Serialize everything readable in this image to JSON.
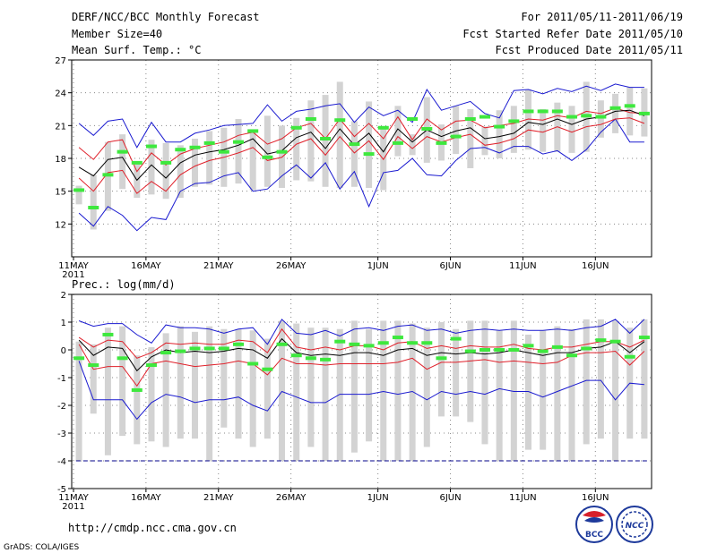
{
  "header": {
    "title": "DERF/NCC/BCC Monthly Forecast",
    "member_size": "Member Size=40",
    "variable": "Mean Surf. Temp.: °C",
    "period": "For 2011/05/11-2011/06/19",
    "refer_date": "Fcst Started Refer Date 2011/05/10",
    "produced_date": "Fcst Produced Date 2011/05/11"
  },
  "footer": {
    "url": "http://cmdp.ncc.cma.gov.cn",
    "credit": "GrADS: COLA/IGES",
    "logo_bcc": "BCC",
    "logo_ncc": "NCC"
  },
  "colors": {
    "box": "#d3d3d3",
    "median": "#3ee83e",
    "mean": "#000000",
    "spread": "#e0202a",
    "envelope": "#1a1ad0",
    "dashed": "#00008b"
  },
  "chart_data": [
    {
      "type": "box",
      "title": "Mean Surf. Temp.: °C",
      "unit": "°C",
      "x_start": "2011-05-11",
      "x_days": 40,
      "ylim": [
        9,
        27
      ],
      "yticks": [
        12,
        15,
        18,
        21,
        24,
        27
      ],
      "xtick_labels": [
        "11MAY",
        "16MAY",
        "21MAY",
        "26MAY",
        "1JUN",
        "6JUN",
        "11JUN",
        "16JUN"
      ],
      "xtick_days": [
        0,
        5,
        10,
        15,
        21,
        26,
        31,
        36
      ],
      "year_label": "2011",
      "series": [
        {
          "name": "max",
          "values": [
            21.2,
            20.1,
            21.4,
            21.6,
            19.0,
            21.3,
            19.5,
            19.5,
            20.3,
            20.6,
            21.0,
            21.1,
            21.2,
            22.9,
            21.4,
            22.3,
            22.5,
            22.8,
            23.0,
            21.3,
            22.7,
            21.9,
            22.4,
            21.3,
            24.3,
            22.4,
            22.8,
            23.2,
            22.1,
            21.7,
            24.2,
            24.3,
            23.9,
            24.4,
            24.1,
            24.6,
            24.2,
            24.8,
            24.5,
            24.5
          ]
        },
        {
          "name": "upper",
          "values": [
            19.0,
            17.9,
            19.5,
            19.7,
            16.8,
            18.5,
            17.4,
            18.4,
            18.9,
            19.2,
            19.5,
            20.1,
            20.4,
            19.3,
            19.8,
            20.8,
            21.2,
            19.8,
            21.6,
            20.0,
            21.2,
            19.8,
            21.8,
            19.7,
            21.6,
            20.6,
            21.4,
            21.5,
            20.8,
            21.0,
            21.2,
            21.6,
            21.5,
            21.9,
            21.7,
            22.3,
            22.1,
            22.6,
            22.2,
            22.1
          ]
        },
        {
          "name": "mean",
          "values": [
            17.2,
            16.4,
            17.9,
            18.1,
            16.0,
            17.4,
            16.2,
            17.6,
            18.3,
            18.6,
            18.8,
            19.2,
            19.8,
            18.4,
            18.7,
            19.9,
            20.4,
            18.9,
            20.7,
            19.2,
            20.3,
            18.6,
            20.7,
            19.5,
            20.6,
            20.0,
            20.5,
            20.8,
            19.8,
            20.0,
            20.3,
            21.3,
            21.1,
            21.6,
            21.1,
            21.6,
            21.8,
            22.3,
            22.4,
            21.9
          ]
        },
        {
          "name": "lower",
          "values": [
            16.2,
            15.0,
            16.7,
            16.9,
            14.8,
            15.9,
            15.0,
            16.5,
            17.3,
            17.8,
            18.1,
            18.5,
            19.0,
            17.8,
            18.1,
            19.3,
            19.8,
            18.3,
            20.0,
            18.5,
            19.6,
            17.9,
            20.0,
            18.9,
            20.0,
            19.5,
            19.9,
            20.2,
            19.2,
            19.4,
            19.8,
            20.6,
            20.4,
            20.9,
            20.4,
            20.9,
            21.1,
            21.6,
            21.7,
            21.2
          ]
        },
        {
          "name": "min",
          "values": [
            13.0,
            11.8,
            13.6,
            12.8,
            11.4,
            12.6,
            12.4,
            15.0,
            15.7,
            15.8,
            16.4,
            16.7,
            15.0,
            15.2,
            16.4,
            17.4,
            16.2,
            17.6,
            15.2,
            16.8,
            13.6,
            16.7,
            16.9,
            18.0,
            16.5,
            16.4,
            17.8,
            18.9,
            19.0,
            18.5,
            19.1,
            19.1,
            18.4,
            18.7,
            17.8,
            18.8,
            20.4,
            21.6,
            19.5,
            19.5
          ]
        },
        {
          "name": "box_top",
          "values": [
            15.5,
            16.5,
            19.5,
            20.2,
            17.5,
            19.7,
            19.4,
            19.2,
            19.8,
            20.5,
            20.8,
            21.6,
            20.6,
            21.9,
            21.0,
            21.7,
            23.3,
            23.8,
            25.0,
            21.4,
            23.2,
            20.8,
            22.8,
            20.2,
            23.6,
            21.1,
            22.8,
            22.5,
            20.9,
            22.4,
            22.8,
            24.3,
            22.5,
            23.1,
            22.8,
            25.0,
            23.3,
            23.9,
            24.5,
            24.4
          ]
        },
        {
          "name": "box_bottom",
          "values": [
            13.8,
            11.5,
            13.2,
            15.2,
            14.4,
            14.7,
            14.3,
            14.4,
            15.4,
            15.6,
            15.4,
            15.7,
            15.1,
            15.4,
            15.3,
            16.0,
            15.9,
            15.4,
            15.3,
            15.4,
            15.3,
            15.1,
            18.2,
            18.3,
            17.6,
            17.8,
            18.4,
            17.1,
            18.3,
            18.0,
            18.5,
            18.8,
            18.6,
            18.6,
            18.5,
            18.6,
            19.9,
            20.3,
            20.1,
            20.0
          ]
        },
        {
          "name": "median",
          "values": [
            15.1,
            13.5,
            16.5,
            18.6,
            17.6,
            19.1,
            17.6,
            18.8,
            19.0,
            19.4,
            18.6,
            19.5,
            20.5,
            18.1,
            18.6,
            20.8,
            21.6,
            19.8,
            21.5,
            19.3,
            18.4,
            20.8,
            19.4,
            21.6,
            20.7,
            19.4,
            20.0,
            21.6,
            21.8,
            20.9,
            21.4,
            22.3,
            22.3,
            22.3,
            21.8,
            21.9,
            21.8,
            22.6,
            22.8,
            22.1
          ]
        }
      ]
    },
    {
      "type": "box",
      "title": "Prec.: log(mm/d)",
      "unit": "log(mm/d)",
      "x_start": "2011-05-11",
      "x_days": 40,
      "ylim": [
        -5,
        2
      ],
      "yticks": [
        -5,
        -4,
        -3,
        -2,
        -1,
        0,
        1,
        2
      ],
      "xtick_labels": [
        "11MAY",
        "16MAY",
        "21MAY",
        "26MAY",
        "1JUN",
        "6JUN",
        "11JUN",
        "16JUN"
      ],
      "xtick_days": [
        0,
        5,
        10,
        15,
        21,
        26,
        31,
        36
      ],
      "year_label": "2011",
      "baseline": -4,
      "series": [
        {
          "name": "max",
          "values": [
            1.05,
            0.85,
            0.95,
            0.95,
            0.55,
            0.25,
            0.9,
            0.8,
            0.8,
            0.75,
            0.6,
            0.75,
            0.8,
            0.2,
            1.1,
            0.6,
            0.55,
            0.7,
            0.5,
            0.75,
            0.8,
            0.7,
            0.85,
            0.9,
            0.7,
            0.75,
            0.6,
            0.7,
            0.75,
            0.7,
            0.75,
            0.7,
            0.7,
            0.75,
            0.7,
            0.8,
            0.85,
            1.1,
            0.6,
            1.1
          ]
        },
        {
          "name": "upper",
          "values": [
            0.45,
            0.1,
            0.35,
            0.3,
            -0.3,
            -0.1,
            0.25,
            0.2,
            0.25,
            0.2,
            0.2,
            0.35,
            0.3,
            -0.1,
            0.75,
            0.1,
            0.0,
            0.1,
            0.0,
            0.15,
            0.15,
            0.0,
            0.25,
            0.3,
            0.05,
            0.15,
            0.05,
            0.15,
            0.1,
            0.1,
            0.2,
            0.05,
            0.0,
            0.1,
            0.1,
            0.2,
            0.3,
            0.3,
            0.1,
            0.35
          ]
        },
        {
          "name": "mean",
          "values": [
            0.35,
            -0.2,
            0.1,
            0.05,
            -0.75,
            -0.25,
            0.0,
            -0.1,
            -0.05,
            -0.1,
            -0.05,
            0.05,
            0.0,
            -0.3,
            0.4,
            -0.1,
            -0.2,
            -0.15,
            -0.2,
            -0.1,
            -0.1,
            -0.2,
            0.0,
            0.05,
            -0.2,
            -0.1,
            -0.15,
            -0.1,
            -0.15,
            -0.1,
            0.0,
            -0.1,
            -0.2,
            -0.1,
            -0.1,
            0.05,
            0.1,
            0.3,
            -0.1,
            0.3
          ]
        },
        {
          "name": "lower",
          "values": [
            0.2,
            -0.7,
            -0.6,
            -0.6,
            -1.3,
            -0.5,
            -0.4,
            -0.5,
            -0.6,
            -0.55,
            -0.5,
            -0.4,
            -0.5,
            -0.9,
            -0.3,
            -0.5,
            -0.5,
            -0.55,
            -0.5,
            -0.5,
            -0.5,
            -0.5,
            -0.45,
            -0.3,
            -0.7,
            -0.45,
            -0.45,
            -0.4,
            -0.35,
            -0.45,
            -0.4,
            -0.45,
            -0.5,
            -0.45,
            -0.2,
            -0.1,
            -0.1,
            -0.05,
            -0.55,
            -0.05
          ]
        },
        {
          "name": "min",
          "values": [
            -0.4,
            -1.8,
            -1.8,
            -1.8,
            -2.5,
            -1.9,
            -1.6,
            -1.7,
            -1.9,
            -1.8,
            -1.8,
            -1.7,
            -2.0,
            -2.2,
            -1.5,
            -1.7,
            -1.9,
            -1.9,
            -1.6,
            -1.6,
            -1.6,
            -1.5,
            -1.6,
            -1.5,
            -1.8,
            -1.5,
            -1.6,
            -1.5,
            -1.6,
            -1.4,
            -1.5,
            -1.5,
            -1.7,
            -1.5,
            -1.3,
            -1.1,
            -1.1,
            -1.8,
            -1.2,
            -1.25
          ]
        },
        {
          "name": "box_top",
          "values": [
            0.3,
            0.2,
            0.8,
            0.85,
            -0.2,
            0.1,
            0.6,
            0.85,
            0.65,
            0.85,
            0.75,
            0.75,
            0.7,
            0.4,
            1.05,
            0.95,
            0.8,
            0.8,
            0.75,
            1.05,
            0.75,
            1.05,
            1.05,
            0.95,
            0.8,
            1.0,
            0.75,
            1.05,
            1.05,
            0.7,
            1.05,
            0.55,
            0.7,
            0.85,
            0.75,
            1.1,
            1.1,
            1.05,
            0.8,
            1.1
          ]
        },
        {
          "name": "box_bottom",
          "values": [
            -4.0,
            -2.3,
            -3.8,
            -3.1,
            -3.4,
            -3.3,
            -3.5,
            -3.2,
            -3.2,
            -4.0,
            -2.8,
            -3.2,
            -3.5,
            -3.2,
            -4.0,
            -4.0,
            -3.5,
            -4.0,
            -4.0,
            -3.7,
            -3.3,
            -4.0,
            -4.0,
            -4.0,
            -3.5,
            -2.4,
            -2.4,
            -2.6,
            -3.4,
            -4.0,
            -4.0,
            -3.6,
            -3.6,
            -4.0,
            -4.0,
            -3.4,
            -3.2,
            -4.0,
            -3.2,
            -3.2
          ]
        },
        {
          "name": "median",
          "values": [
            -0.3,
            -0.55,
            0.55,
            -0.3,
            -1.45,
            -0.55,
            -0.1,
            -0.05,
            0.05,
            0.05,
            0.05,
            0.2,
            -0.5,
            -0.7,
            0.2,
            -0.2,
            -0.3,
            -0.35,
            0.3,
            0.2,
            0.15,
            0.25,
            0.45,
            0.25,
            0.25,
            -0.3,
            0.4,
            -0.05,
            0.0,
            0.0,
            0.0,
            0.15,
            -0.05,
            0.1,
            -0.2,
            0.05,
            0.35,
            0.3,
            -0.25,
            0.45
          ]
        }
      ]
    }
  ]
}
